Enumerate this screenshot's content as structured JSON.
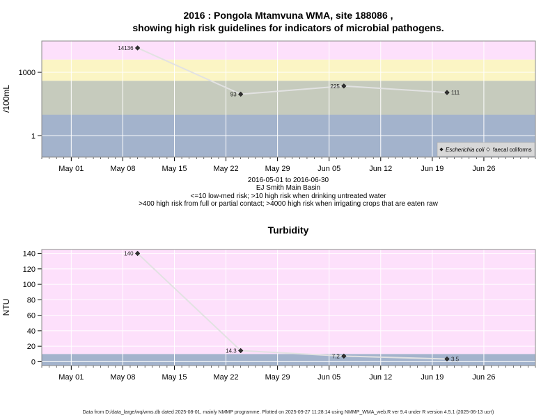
{
  "chart_data": [
    {
      "type": "line",
      "title_lines": [
        "2016 : Pongola Mtamvuna WMA, site 188086 ,",
        "showing high risk guidelines for indicators of microbial pathogens."
      ],
      "ylabel": "/100mL",
      "y_scale": "log10",
      "ylim": [
        0.1,
        30000
      ],
      "y_ticks": [
        1,
        1000
      ],
      "y_tick_labels": [
        "1",
        "1000"
      ],
      "x_range": [
        "2016-04-27",
        "2016-07-03"
      ],
      "x_ticks": [
        "2016-05-01",
        "2016-05-08",
        "2016-05-15",
        "2016-05-22",
        "2016-05-29",
        "2016-06-05",
        "2016-06-12",
        "2016-06-19",
        "2016-06-26"
      ],
      "x_tick_labels": [
        "May 01",
        "May 08",
        "May 15",
        "May 22",
        "May 29",
        "Jun 05",
        "Jun 12",
        "Jun 19",
        "Jun 26"
      ],
      "bands": [
        {
          "from": 0.1,
          "to": 10,
          "color": "#a3b3cc"
        },
        {
          "from": 10,
          "to": 400,
          "color": "#c6cbbd"
        },
        {
          "from": 400,
          "to": 4000,
          "color": "#fbf5c4"
        },
        {
          "from": 4000,
          "to": 30000,
          "color": "#fde0fb"
        }
      ],
      "grid": true,
      "series": [
        {
          "name": "Escherichia coli",
          "marker": "filled-diamond",
          "points": [
            {
              "x": "2016-05-10",
              "y": 14136,
              "label": "14136",
              "label_side": "left"
            },
            {
              "x": "2016-05-24",
              "y": 93,
              "label": "93",
              "label_side": "left"
            },
            {
              "x": "2016-06-07",
              "y": 225,
              "label": "225",
              "label_side": "left"
            },
            {
              "x": "2016-06-21",
              "y": 111,
              "label": "111",
              "label_side": "right"
            }
          ]
        }
      ],
      "legend": {
        "placement": "bottom-right",
        "entries": [
          {
            "label": "Escherichia coli",
            "marker": "filled-diamond",
            "italic": true
          },
          {
            "label": "faecal coliforms",
            "marker": "open-diamond",
            "italic": false
          }
        ]
      },
      "caption_lines": [
        "2016-05-01 to 2016-06-30",
        "EJ Smith Main Basin",
        "<=10 low-med risk; >10 high risk when drinking untreated water",
        ">400 high risk from full or partial contact; >4000 high risk when irrigating crops that are eaten raw"
      ]
    },
    {
      "type": "line",
      "title": "Turbidity",
      "ylabel": "NTU",
      "y_scale": "linear",
      "ylim": [
        -5,
        145
      ],
      "y_ticks": [
        0,
        20,
        40,
        60,
        80,
        100,
        120,
        140
      ],
      "y_tick_labels": [
        "0",
        "20",
        "40",
        "60",
        "80",
        "100",
        "120",
        "140"
      ],
      "x_range": [
        "2016-04-27",
        "2016-07-03"
      ],
      "x_ticks": [
        "2016-05-01",
        "2016-05-08",
        "2016-05-15",
        "2016-05-22",
        "2016-05-29",
        "2016-06-05",
        "2016-06-12",
        "2016-06-19",
        "2016-06-26"
      ],
      "x_tick_labels": [
        "May 01",
        "May 08",
        "May 15",
        "May 22",
        "May 29",
        "Jun 05",
        "Jun 12",
        "Jun 19",
        "Jun 26"
      ],
      "bands": [
        {
          "from": -5,
          "to": 10,
          "color": "#a3b3cc"
        },
        {
          "from": 10,
          "to": 145,
          "color": "#fde0fb"
        }
      ],
      "grid": true,
      "series": [
        {
          "name": "",
          "marker": "filled-diamond",
          "points": [
            {
              "x": "2016-05-10",
              "y": 140,
              "label": "140",
              "label_side": "left"
            },
            {
              "x": "2016-05-24",
              "y": 14.3,
              "label": "14.3",
              "label_side": "left"
            },
            {
              "x": "2016-06-07",
              "y": 7.2,
              "label": "7.2",
              "label_side": "left"
            },
            {
              "x": "2016-06-21",
              "y": 3.5,
              "label": "3.5",
              "label_side": "right"
            }
          ]
        }
      ]
    }
  ],
  "footer": "Data from D:/data_large/wq/wms.db dated 2025-08-01, mainly NMMP programme. Plotted on 2025-09-27 11:28:14 using NMMP_WMA_web.R ver 9.4 under R version 4.5.1 (2025-06-13 ucrt)"
}
